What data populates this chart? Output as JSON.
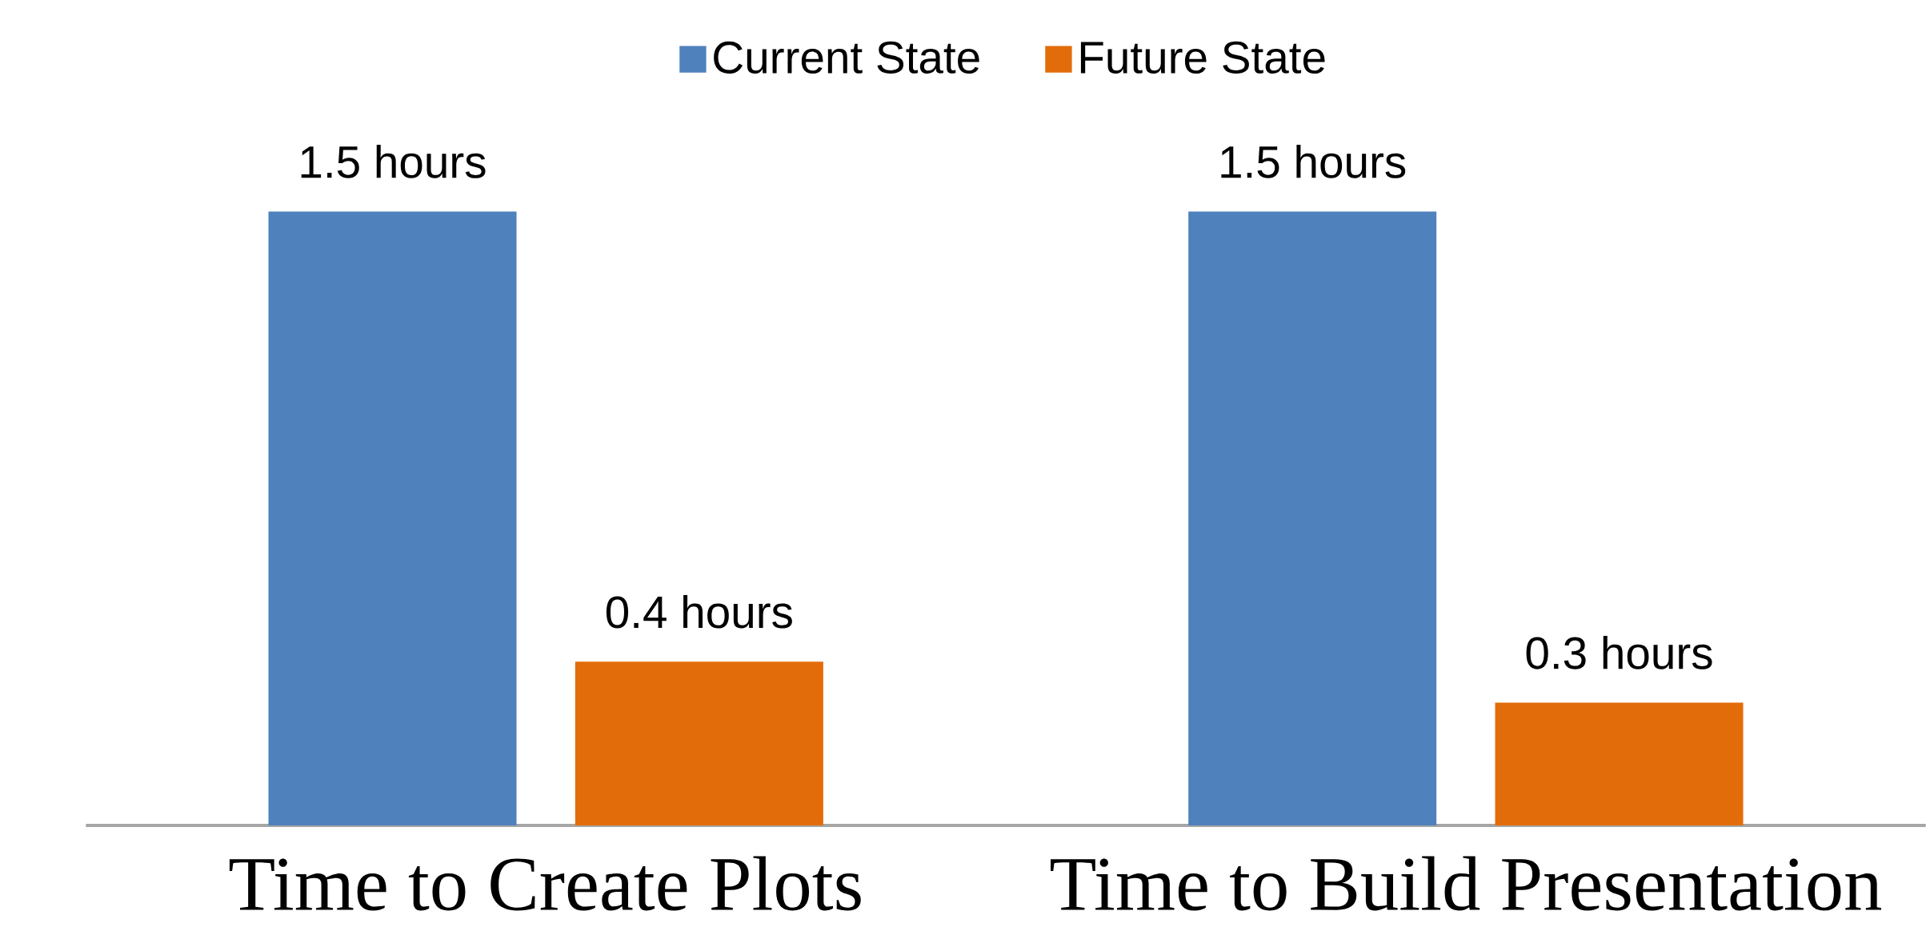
{
  "chart_data": {
    "type": "bar",
    "categories": [
      "Time to Create Plots",
      "Time to Build Presentation"
    ],
    "series": [
      {
        "name": "Current State",
        "color": "#4f81bd",
        "values": [
          1.5,
          1.5
        ],
        "value_labels": [
          "1.5 hours",
          "1.5 hours"
        ]
      },
      {
        "name": "Future State",
        "color": "#e36c0a",
        "values": [
          0.4,
          0.3
        ],
        "value_labels": [
          "0.4 hours",
          "0.3 hours"
        ]
      }
    ],
    "legend": "top"
  }
}
